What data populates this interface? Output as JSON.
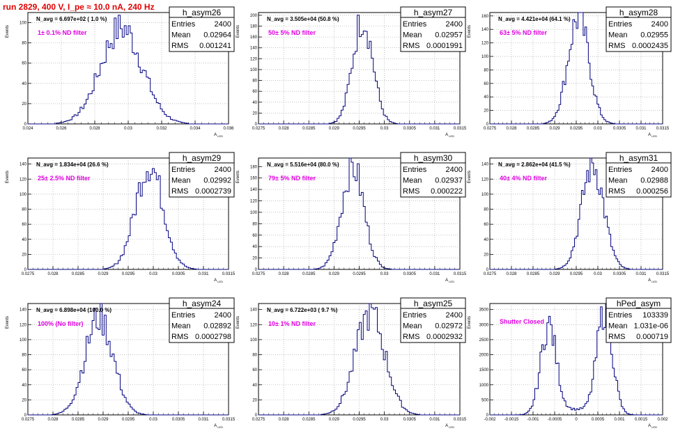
{
  "run_title": "run 2829,   400 V, I_pe ≈ 10.0 nA, 240 Hz",
  "colors": {
    "hist": "#000080",
    "title": "#e00000",
    "filter": "#e000e0",
    "grid": "#999999"
  },
  "chart_data": [
    {
      "type": "histogram",
      "name": "h_asym26",
      "navg": "N_avg = 6.697e+02 ( 1.0 %)",
      "filter": "1± 0.1% ND filter",
      "stats": {
        "entries": "2400",
        "mean": "0.02964",
        "rms": "0.001241"
      },
      "xlim": [
        0.024,
        0.036
      ],
      "ylim": [
        0,
        110
      ],
      "xticks": [
        "0.024",
        "0.026",
        "0.028",
        "0.03",
        "0.032",
        "0.034",
        "0.036"
      ],
      "yticks": [
        "0",
        "20",
        "40",
        "60",
        "80",
        "100"
      ],
      "xlabel": "A_LED",
      "ylabel": "Events",
      "bins": 100,
      "peak": {
        "mean": 0.0296,
        "rms": 0.00124,
        "height": 95
      },
      "y_tick_values": [
        0,
        20,
        40,
        60,
        80,
        100
      ]
    },
    {
      "type": "histogram",
      "name": "h_asym27",
      "navg": "N_avg = 3.505e+04 (50.8 %)",
      "filter": "50± 5% ND filter",
      "stats": {
        "entries": "2400",
        "mean": "0.02957",
        "rms": "0.0001991"
      },
      "xlim": [
        0.0275,
        0.0315
      ],
      "ylim": [
        0,
        205
      ],
      "xticks": [
        "0.0275",
        "0.028",
        "0.0285",
        "0.029",
        "0.0295",
        "0.03",
        "0.0305",
        "0.031",
        "0.0315"
      ],
      "yticks": [
        "0",
        "20",
        "40",
        "60",
        "80",
        "100",
        "120",
        "140",
        "160",
        "180",
        "200"
      ],
      "xlabel": "A_LED",
      "ylabel": "Events",
      "bins": 100,
      "peak": {
        "mean": 0.02957,
        "rms": 0.000199,
        "height": 195
      },
      "y_tick_values": [
        0,
        20,
        40,
        60,
        80,
        100,
        120,
        140,
        160,
        180,
        200
      ]
    },
    {
      "type": "histogram",
      "name": "h_asym28",
      "navg": "N_avg = 4.421e+04 (64.1 %)",
      "filter": "63± 5% ND filter",
      "stats": {
        "entries": "2400",
        "mean": "0.02955",
        "rms": "0.0002435"
      },
      "xlim": [
        0.0275,
        0.0315
      ],
      "ylim": [
        0,
        165
      ],
      "xticks": [
        "0.0275",
        "0.028",
        "0.0285",
        "0.029",
        "0.0295",
        "0.03",
        "0.0305",
        "0.031",
        "0.0315"
      ],
      "yticks": [
        "0",
        "20",
        "40",
        "60",
        "80",
        "100",
        "120",
        "140",
        "160"
      ],
      "xlabel": "A_LED",
      "ylabel": "Events",
      "bins": 100,
      "peak": {
        "mean": 0.02955,
        "rms": 0.000243,
        "height": 158
      },
      "y_tick_values": [
        0,
        20,
        40,
        60,
        80,
        100,
        120,
        140,
        160
      ]
    },
    {
      "type": "histogram",
      "name": "h_asym29",
      "navg": "N_avg = 1.834e+04 (26.6 %)",
      "filter": "25± 2.5% ND filter",
      "stats": {
        "entries": "2400",
        "mean": "0.02992",
        "rms": "0.0002739"
      },
      "xlim": [
        0.0275,
        0.0315
      ],
      "ylim": [
        0,
        148
      ],
      "xticks": [
        "0.0275",
        "0.028",
        "0.0285",
        "0.029",
        "0.0295",
        "0.03",
        "0.0305",
        "0.031",
        "0.0315"
      ],
      "yticks": [
        "0",
        "20",
        "40",
        "60",
        "80",
        "100",
        "120",
        "140"
      ],
      "xlabel": "A_LED",
      "ylabel": "Events",
      "bins": 100,
      "peak": {
        "mean": 0.02992,
        "rms": 0.000274,
        "height": 140
      },
      "y_tick_values": [
        0,
        20,
        40,
        60,
        80,
        100,
        120,
        140
      ]
    },
    {
      "type": "histogram",
      "name": "h_asym30",
      "navg": "N_avg = 5.516e+04 (80.0 %)",
      "filter": "79± 5% ND filter",
      "stats": {
        "entries": "2400",
        "mean": "0.02937",
        "rms": "0.000222"
      },
      "xlim": [
        0.0275,
        0.0315
      ],
      "ylim": [
        0,
        195
      ],
      "xticks": [
        "0.0275",
        "0.028",
        "0.0285",
        "0.029",
        "0.0295",
        "0.03",
        "0.0305",
        "0.031",
        "0.0315"
      ],
      "yticks": [
        "0",
        "20",
        "40",
        "60",
        "80",
        "100",
        "120",
        "140",
        "160",
        "180"
      ],
      "xlabel": "A_LED",
      "ylabel": "Events",
      "bins": 100,
      "peak": {
        "mean": 0.02937,
        "rms": 0.000222,
        "height": 180
      },
      "y_tick_values": [
        0,
        20,
        40,
        60,
        80,
        100,
        120,
        140,
        160,
        180
      ]
    },
    {
      "type": "histogram",
      "name": "h_asym31",
      "navg": "N_avg = 2.862e+04 (41.5 %)",
      "filter": "40± 4% ND filter",
      "stats": {
        "entries": "2400",
        "mean": "0.02988",
        "rms": "0.000256"
      },
      "xlim": [
        0.0275,
        0.0315
      ],
      "ylim": [
        0,
        148
      ],
      "xticks": [
        "0.0275",
        "0.028",
        "0.0285",
        "0.029",
        "0.0295",
        "0.03",
        "0.0305",
        "0.031",
        "0.0315"
      ],
      "yticks": [
        "0",
        "20",
        "40",
        "60",
        "80",
        "100",
        "120",
        "140"
      ],
      "xlabel": "A_LED",
      "ylabel": "Events",
      "bins": 100,
      "peak": {
        "mean": 0.02988,
        "rms": 0.000256,
        "height": 140
      },
      "y_tick_values": [
        0,
        20,
        40,
        60,
        80,
        100,
        120,
        140
      ]
    },
    {
      "type": "histogram",
      "name": "h_asym24",
      "navg": "N_avg = 6.898e+04 (100.0 %)",
      "filter": "100% (No filter)",
      "stats": {
        "entries": "2400",
        "mean": "0.02892",
        "rms": "0.0002798"
      },
      "xlim": [
        0.0275,
        0.0315
      ],
      "ylim": [
        0,
        148
      ],
      "xticks": [
        "0.0275",
        "0.028",
        "0.0285",
        "0.029",
        "0.0295",
        "0.03",
        "0.0305",
        "0.031",
        "0.0315"
      ],
      "yticks": [
        "0",
        "20",
        "40",
        "60",
        "80",
        "100",
        "120",
        "140"
      ],
      "xlabel": "A_LED",
      "ylabel": "Events",
      "bins": 100,
      "peak": {
        "mean": 0.02892,
        "rms": 0.00028,
        "height": 130
      },
      "y_tick_values": [
        0,
        20,
        40,
        60,
        80,
        100,
        120,
        140
      ]
    },
    {
      "type": "histogram",
      "name": "h_asym25",
      "navg": "N_avg = 6.722e+03 ( 9.7 %)",
      "filter": "10± 1% ND filter",
      "stats": {
        "entries": "2400",
        "mean": "0.02972",
        "rms": "0.0002932"
      },
      "xlim": [
        0.0275,
        0.0315
      ],
      "ylim": [
        0,
        148
      ],
      "xticks": [
        "0.0275",
        "0.028",
        "0.0285",
        "0.029",
        "0.0295",
        "0.03",
        "0.0305",
        "0.031",
        "0.0315"
      ],
      "yticks": [
        "0",
        "20",
        "40",
        "60",
        "80",
        "100",
        "120",
        "140"
      ],
      "xlabel": "A_LED",
      "ylabel": "Events",
      "bins": 100,
      "peak": {
        "mean": 0.02972,
        "rms": 0.000293,
        "height": 135
      },
      "y_tick_values": [
        0,
        20,
        40,
        60,
        80,
        100,
        120,
        140
      ]
    },
    {
      "type": "histogram",
      "name": "hPed_asym",
      "navg": "",
      "filter": "Shutter Closed",
      "stats": {
        "entries": "103339",
        "mean": "1.031e-06",
        "rms": "0.000719"
      },
      "xlim": [
        -0.002,
        0.002
      ],
      "ylim": [
        0,
        3700
      ],
      "xticks": [
        "-0.002",
        "-0.0015",
        "-0.001",
        "-0.0005",
        "0",
        "0.0005",
        "0.001",
        "0.0015",
        "0.002"
      ],
      "yticks": [
        "0",
        "500",
        "1000",
        "1500",
        "2000",
        "2500",
        "3000",
        "3500"
      ],
      "xlabel": "A_LED",
      "ylabel": "Events",
      "bins": 100,
      "bimodal": {
        "m1": -0.00064,
        "m2": 0.00066,
        "rms": 0.00018,
        "h1": 2950,
        "h2": 3450
      },
      "y_tick_values": [
        0,
        500,
        1000,
        1500,
        2000,
        2500,
        3000,
        3500
      ]
    }
  ]
}
